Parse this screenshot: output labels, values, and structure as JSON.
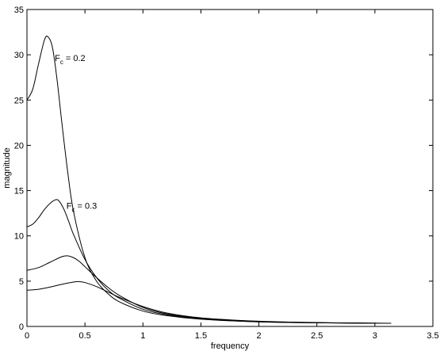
{
  "chart_data": {
    "type": "line",
    "title": "",
    "xlabel": "frequency",
    "ylabel": "magnitude",
    "xlim": [
      0,
      3.5
    ],
    "ylim": [
      0,
      35
    ],
    "xticks": [
      0,
      0.5,
      1,
      1.5,
      2,
      2.5,
      3,
      3.5
    ],
    "yticks": [
      0,
      5,
      10,
      15,
      20,
      25,
      30,
      35
    ],
    "xtick_labels": [
      "0",
      "0.5",
      "1",
      "1.5",
      "2",
      "2.5",
      "3",
      "3.5"
    ],
    "ytick_labels": [
      "0",
      "5",
      "10",
      "15",
      "20",
      "25",
      "30",
      "35"
    ],
    "grid": false,
    "line_color": "#000000",
    "series": [
      {
        "x": [
          0,
          0.05,
          0.1,
          0.15,
          0.18,
          0.22,
          0.26,
          0.3,
          0.35,
          0.4,
          0.5,
          0.6,
          0.7,
          0.8,
          1.0,
          1.2,
          1.5,
          2.0,
          2.5,
          3.0,
          3.14
        ],
        "y": [
          25.0,
          26.2,
          29.0,
          31.6,
          32.0,
          30.8,
          27.2,
          22.6,
          17.2,
          12.8,
          7.6,
          5.0,
          3.6,
          2.7,
          1.7,
          1.2,
          0.8,
          0.5,
          0.4,
          0.35,
          0.35
        ]
      },
      {
        "x": [
          0,
          0.05,
          0.1,
          0.15,
          0.2,
          0.25,
          0.28,
          0.32,
          0.36,
          0.4,
          0.5,
          0.6,
          0.7,
          0.8,
          1.0,
          1.2,
          1.5,
          2.0,
          2.5,
          3.0,
          3.14
        ],
        "y": [
          11.0,
          11.3,
          12.0,
          12.9,
          13.6,
          14.0,
          13.8,
          12.9,
          11.6,
          10.2,
          7.4,
          5.4,
          4.0,
          3.1,
          1.9,
          1.3,
          0.85,
          0.5,
          0.4,
          0.35,
          0.35
        ]
      },
      {
        "x": [
          0,
          0.1,
          0.2,
          0.3,
          0.35,
          0.4,
          0.45,
          0.5,
          0.6,
          0.7,
          0.8,
          1.0,
          1.2,
          1.5,
          2.0,
          2.5,
          3.0,
          3.14
        ],
        "y": [
          6.2,
          6.5,
          7.1,
          7.7,
          7.8,
          7.6,
          7.2,
          6.6,
          5.4,
          4.3,
          3.4,
          2.1,
          1.4,
          0.9,
          0.55,
          0.42,
          0.36,
          0.35
        ]
      },
      {
        "x": [
          0,
          0.1,
          0.2,
          0.3,
          0.4,
          0.45,
          0.5,
          0.6,
          0.7,
          0.8,
          1.0,
          1.2,
          1.5,
          2.0,
          2.5,
          3.0,
          3.14
        ],
        "y": [
          4.0,
          4.1,
          4.35,
          4.65,
          4.9,
          4.95,
          4.85,
          4.4,
          3.8,
          3.2,
          2.2,
          1.5,
          0.95,
          0.58,
          0.43,
          0.36,
          0.35
        ]
      }
    ],
    "annotations": [
      {
        "text": "= 0.2",
        "sym": "F",
        "sub": "c",
        "x": 0.24,
        "y": 29.3
      },
      {
        "text": "= 0.3",
        "sym": "F",
        "sub": "c",
        "x": 0.34,
        "y": 13.0
      }
    ]
  }
}
